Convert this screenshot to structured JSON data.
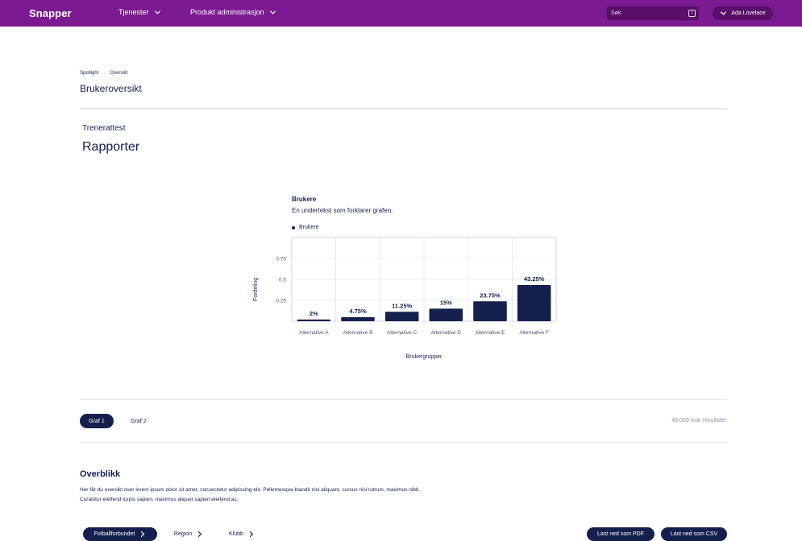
{
  "topbar": {
    "logo": "Snapper",
    "nav": [
      {
        "label": "Tjenester"
      },
      {
        "label": "Produkt administrasjon"
      }
    ],
    "search_placeholder": "Søk",
    "search_shortcut": "/",
    "user_name": "Ada Lovelace"
  },
  "breadcrumb": {
    "root": "Spotlight",
    "separator": "→",
    "current": "Oversikt"
  },
  "page_title": "Brukeroversikt",
  "section": {
    "subtitle": "Trenerattest",
    "title": "Rapporter"
  },
  "chart_data": {
    "type": "bar",
    "title": "Brukere",
    "subtitle": "En undertekst som forklarer grafen.",
    "legend": [
      "Brukere"
    ],
    "categories": [
      "Alternative A",
      "Alternative B",
      "Alternative C",
      "Alternative D",
      "Alternative E",
      "Alternative F"
    ],
    "values": [
      0.02,
      0.0475,
      0.1125,
      0.15,
      0.2375,
      0.4325
    ],
    "value_labels": [
      "2%",
      "4.75%",
      "11.25%",
      "15%",
      "23.75%",
      "43.25%"
    ],
    "yticks": [
      "0.25",
      "0.5",
      "0.75"
    ],
    "ylim": [
      0,
      1
    ],
    "xlabel": "Brukergrupper",
    "ylabel": "Fordeling",
    "grid": true,
    "legend_position": "top-left",
    "bar_color": "#15204f"
  },
  "graph_tabs": {
    "tab1": "Graf 1",
    "tab2": "Graf 2",
    "results": "40,000 svar resultater"
  },
  "overview": {
    "title": "Overblikk",
    "line1": "Her får du oversikt over lorem ipsum dolor sit amet, consectetur adipiscing elit. Pellentesque blandit nisl aliquam, cursus nisl rutrum, maximus nibh.",
    "line2": "Curabitur eleifend turpis sapien, maximus aliquet sapien eleifend ac."
  },
  "filters": {
    "f1": "Fotballforbundet",
    "f2": "Region",
    "f3": "Klubb"
  },
  "downloads": {
    "pdf": "Last ned som PDF",
    "csv": "Last ned som CSV"
  }
}
